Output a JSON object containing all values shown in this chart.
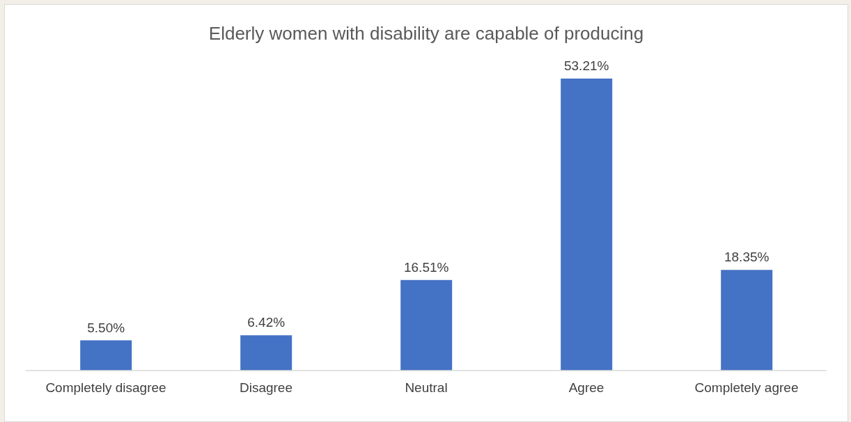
{
  "chart_data": {
    "type": "bar",
    "title": "Elderly women with disability are capable of producing",
    "categories": [
      "Completely disagree",
      "Disagree",
      "Neutral",
      "Agree",
      "Completely agree"
    ],
    "values": [
      5.5,
      6.42,
      16.51,
      53.21,
      18.35
    ],
    "value_labels": [
      "5.50%",
      "6.42%",
      "16.51%",
      "53.21%",
      "18.35%"
    ],
    "color": "#4472c4"
  }
}
